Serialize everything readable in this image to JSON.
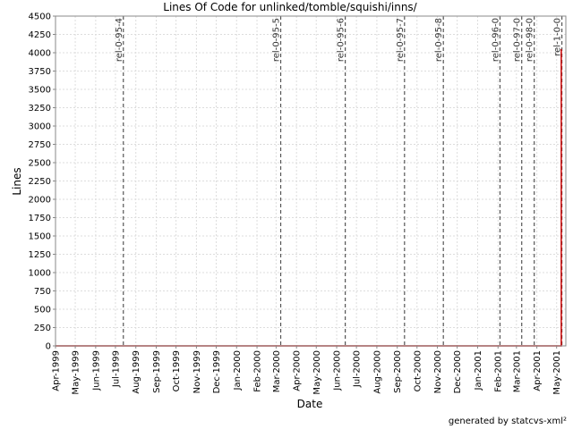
{
  "chart_data": {
    "type": "line",
    "title": "Lines Of Code for unlinked/tomble/squishi/inns/",
    "xlabel": "Date",
    "ylabel": "Lines",
    "ylim": [
      0,
      4500
    ],
    "xlim": [
      "1999-04-01",
      "2001-05-15"
    ],
    "yticks": [
      0,
      250,
      500,
      750,
      1000,
      1250,
      1500,
      1750,
      2000,
      2250,
      2500,
      2750,
      3000,
      3250,
      3500,
      3750,
      4000,
      4250,
      4500
    ],
    "xticks": [
      {
        "label": "Apr-1999",
        "date": "1999-04-01"
      },
      {
        "label": "May-1999",
        "date": "1999-05-01"
      },
      {
        "label": "Jun-1999",
        "date": "1999-06-01"
      },
      {
        "label": "Jul-1999",
        "date": "1999-07-01"
      },
      {
        "label": "Aug-1999",
        "date": "1999-08-01"
      },
      {
        "label": "Sep-1999",
        "date": "1999-09-01"
      },
      {
        "label": "Oct-1999",
        "date": "1999-10-01"
      },
      {
        "label": "Nov-1999",
        "date": "1999-11-01"
      },
      {
        "label": "Dec-1999",
        "date": "1999-12-01"
      },
      {
        "label": "Jan-2000",
        "date": "2000-01-01"
      },
      {
        "label": "Feb-2000",
        "date": "2000-02-01"
      },
      {
        "label": "Mar-2000",
        "date": "2000-03-01"
      },
      {
        "label": "Apr-2000",
        "date": "2000-04-01"
      },
      {
        "label": "May-2000",
        "date": "2000-05-01"
      },
      {
        "label": "Jun-2000",
        "date": "2000-06-01"
      },
      {
        "label": "Jul-2000",
        "date": "2000-07-01"
      },
      {
        "label": "Aug-2000",
        "date": "2000-08-01"
      },
      {
        "label": "Sep-2000",
        "date": "2000-09-01"
      },
      {
        "label": "Oct-2000",
        "date": "2000-10-01"
      },
      {
        "label": "Nov-2000",
        "date": "2000-11-01"
      },
      {
        "label": "Dec-2000",
        "date": "2000-12-01"
      },
      {
        "label": "Jan-2001",
        "date": "2001-01-01"
      },
      {
        "label": "Feb-2001",
        "date": "2001-02-01"
      },
      {
        "label": "Mar-2001",
        "date": "2001-03-01"
      },
      {
        "label": "Apr-2001",
        "date": "2001-04-01"
      },
      {
        "label": "May-2001",
        "date": "2001-05-01"
      }
    ],
    "series": [
      {
        "color": "#cc0000",
        "points": [
          {
            "x": "1999-04-01",
            "y": 0
          },
          {
            "x": "2001-05-08",
            "y": 0
          },
          {
            "x": "2001-05-08",
            "y": 4050
          }
        ]
      }
    ],
    "releases": [
      {
        "label": "rel-0-95-4",
        "date": "1999-07-13"
      },
      {
        "label": "rel-0-95-5",
        "date": "2000-03-08"
      },
      {
        "label": "rel-0-95-6",
        "date": "2000-06-14"
      },
      {
        "label": "rel-0-95-7",
        "date": "2000-09-12"
      },
      {
        "label": "rel-0-95-8",
        "date": "2000-11-10"
      },
      {
        "label": "rel-0-96-0",
        "date": "2001-02-04"
      },
      {
        "label": "rel-0-97-0",
        "date": "2001-03-09"
      },
      {
        "label": "rel-0-98-0",
        "date": "2001-03-28"
      },
      {
        "label": "rel-1-0-0",
        "date": "2001-05-09"
      }
    ],
    "grid": true
  },
  "footer": "generated by statcvs-xml²",
  "colors": {
    "grid": "#dddddd",
    "release_line": "#555555",
    "series": "#cc0000"
  }
}
